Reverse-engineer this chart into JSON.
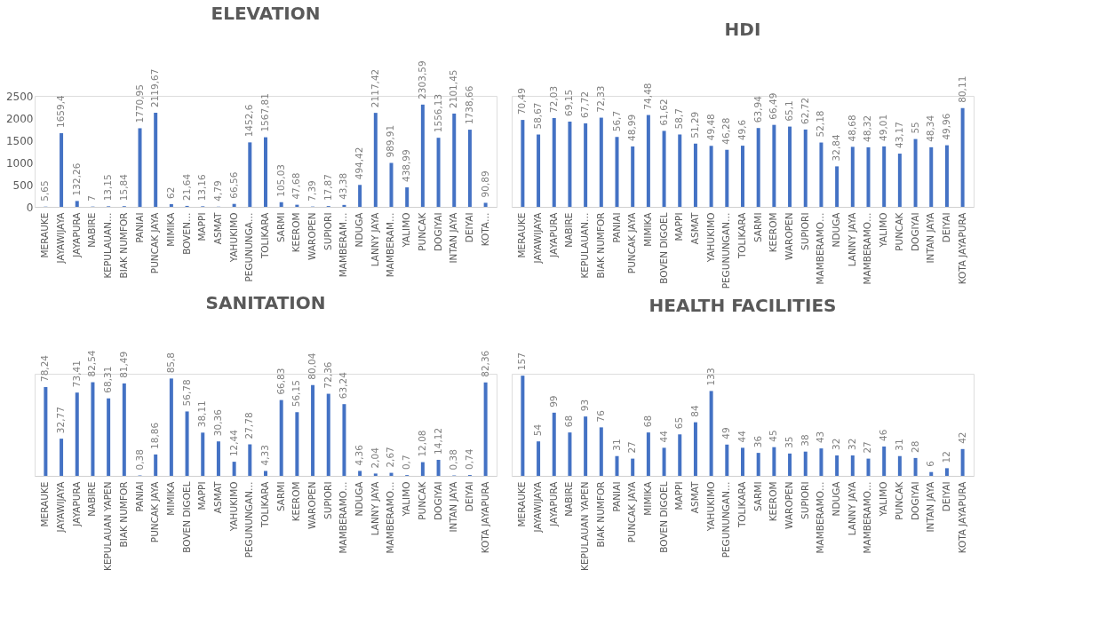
{
  "chart_data": [
    {
      "type": "bar",
      "title": "ELEVATION",
      "color": "#4472c4",
      "ylim": [
        0,
        2500
      ],
      "yticks": [
        0,
        500,
        1000,
        1500,
        2000,
        2500
      ],
      "categories": [
        "MERAUKE",
        "JAYAWIJAYA",
        "JAYAPURA",
        "NABIRE",
        "KEPULAUAN…",
        "BIAK NUMFOR",
        "PANIAI",
        "PUNCAK JAYA",
        "MIMIKA",
        "BOVEN…",
        "MAPPI",
        "ASMAT",
        "YAHUKIMO",
        "PEGUNUNGA…",
        "TOLIKARA",
        "SARMI",
        "KEEROM",
        "WAROPEN",
        "SUPIORI",
        "MAMBERAM…",
        "NDUGA",
        "LANNY JAYA",
        "MAMBERAM…",
        "YALIMO",
        "PUNCAK",
        "DOGIYAI",
        "INTAN JAYA",
        "DEIYAI",
        "KOTA…"
      ],
      "values": [
        5.65,
        1659.4,
        132.26,
        7,
        13.15,
        15.84,
        1770.95,
        2119.67,
        62,
        21.64,
        13.16,
        4.79,
        66.56,
        1452.6,
        1567.81,
        105.03,
        47.68,
        7.39,
        17.87,
        43.38,
        494.42,
        2117.42,
        989.91,
        438.99,
        2303.59,
        1556.13,
        2101.45,
        1738.66,
        90.89
      ],
      "value_labels": [
        "5,65",
        "1659,4",
        "132,26",
        "7",
        "13,15",
        "15,84",
        "1770,95",
        "2119,67",
        "62",
        "21,64",
        "13,16",
        "4,79",
        "66,56",
        "1452,6",
        "1567,81",
        "105,03",
        "47,68",
        "7,39",
        "17,87",
        "43,38",
        "494,42",
        "2117,42",
        "989,91",
        "438,99",
        "2303,59",
        "1556,13",
        "2101,45",
        "1738,66",
        "90,89"
      ]
    },
    {
      "type": "bar",
      "title": "HDI",
      "color": "#4472c4",
      "tick_labels": "x",
      "categories": [
        "MERAUKE",
        "JAYAWIJAYA",
        "JAYAPURA",
        "NABIRE",
        "KEPULAUAN…",
        "BIAK NUMFOR",
        "PANIAI",
        "PUNCAK JAYA",
        "MIMIKA",
        "BOVEN DIGOEL",
        "MAPPI",
        "ASMAT",
        "YAHUKIMO",
        "PEGUNUNGAN…",
        "TOLIKARA",
        "SARMI",
        "KEEROM",
        "WAROPEN",
        "SUPIORI",
        "MAMBERAMO…",
        "NDUGA",
        "LANNY JAYA",
        "MAMBERAMO…",
        "YALIMO",
        "PUNCAK",
        "DOGIYAI",
        "INTAN JAYA",
        "DEIYAI",
        "KOTA JAYAPURA"
      ],
      "values": [
        70.49,
        58.67,
        72.03,
        69.15,
        67.72,
        72.33,
        56.7,
        48.99,
        74.48,
        61.62,
        58.7,
        51.29,
        49.48,
        46.28,
        49.6,
        63.94,
        66.49,
        65.1,
        62.72,
        52.18,
        32.84,
        48.68,
        48.32,
        49.01,
        43.17,
        55,
        48.34,
        49.96,
        80.11
      ],
      "value_labels": [
        "70,49",
        "58,67",
        "72,03",
        "69,15",
        "67,72",
        "72,33",
        "56,7",
        "48,99",
        "74,48",
        "61,62",
        "58,7",
        "51,29",
        "49,48",
        "46,28",
        "49,6",
        "63,94",
        "66,49",
        "65,1",
        "62,72",
        "52,18",
        "32,84",
        "48,68",
        "48,32",
        "49,01",
        "43,17",
        "55",
        "48,34",
        "49,96",
        "80,11"
      ]
    },
    {
      "type": "bar",
      "title": "SANITATION",
      "color": "#4472c4",
      "tick_labels": "x",
      "categories": [
        "MERAUKE",
        "JAYAWIJAYA",
        "JAYAPURA",
        "NABIRE",
        "KEPULAUAN YAPEN",
        "BIAK NUMFOR",
        "PANIAI",
        "PUNCAK JAYA",
        "MIMIKA",
        "BOVEN DIGOEL",
        "MAPPI",
        "ASMAT",
        "YAHUKIMO",
        "PEGUNUNGAN…",
        "TOLIKARA",
        "SARMI",
        "KEEROM",
        "WAROPEN",
        "SUPIORI",
        "MAMBERAMO…",
        "NDUGA",
        "LANNY JAYA",
        "MAMBERAMO…",
        "YALIMO",
        "PUNCAK",
        "DOGIYAI",
        "INTAN JAYA",
        "DEIYAI",
        "KOTA JAYAPURA"
      ],
      "values": [
        78.24,
        32.77,
        73.41,
        82.54,
        68.31,
        81.49,
        0.38,
        18.86,
        85.8,
        56.78,
        38.11,
        30.36,
        12.44,
        27.78,
        4.33,
        66.83,
        56.15,
        80.04,
        72.36,
        63.24,
        4.36,
        2.04,
        2.67,
        0.7,
        12.08,
        14.12,
        0.38,
        0.74,
        82.36
      ],
      "value_labels": [
        "78,24",
        "32,77",
        "73,41",
        "82,54",
        "68,31",
        "81,49",
        "0,38",
        "18,86",
        "85,8",
        "56,78",
        "38,11",
        "30,36",
        "12,44",
        "27,78",
        "4,33",
        "66,83",
        "56,15",
        "80,04",
        "72,36",
        "63,24",
        "4,36",
        "2,04",
        "2,67",
        "0,7",
        "12,08",
        "14,12",
        "0,38",
        "0,74",
        "82,36"
      ]
    },
    {
      "type": "bar",
      "title": "HEALTH FACILITIES",
      "color": "#4472c4",
      "tick_labels": "x",
      "data_labels": true,
      "categories": [
        "MERAUKE",
        "JAYAWIJAYA",
        "JAYAPURA",
        "NABIRE",
        "KEPULAUAN YAPEN",
        "BIAK NUMFOR",
        "PANIAI",
        "PUNCAK JAYA",
        "MIMIKA",
        "BOVEN DIGOEL",
        "MAPPI",
        "ASMAT",
        "YAHUKIMO",
        "PEGUNUNGAN…",
        "TOLIKARA",
        "SARMI",
        "KEEROM",
        "WAROPEN",
        "SUPIORI",
        "MAMBERAMO…",
        "NDUGA",
        "LANNY JAYA",
        "MAMBERAMO…",
        "YALIMO",
        "PUNCAK",
        "DOGIYAI",
        "INTAN JAYA",
        "DEIYAI",
        "KOTA JAYAPURA"
      ],
      "values": [
        157,
        54,
        99,
        68,
        93,
        76,
        31,
        27,
        68,
        44,
        65,
        84,
        133,
        49,
        44,
        36,
        45,
        35,
        38,
        43,
        32,
        32,
        27,
        46,
        31,
        28,
        6,
        12,
        42
      ]
    }
  ]
}
